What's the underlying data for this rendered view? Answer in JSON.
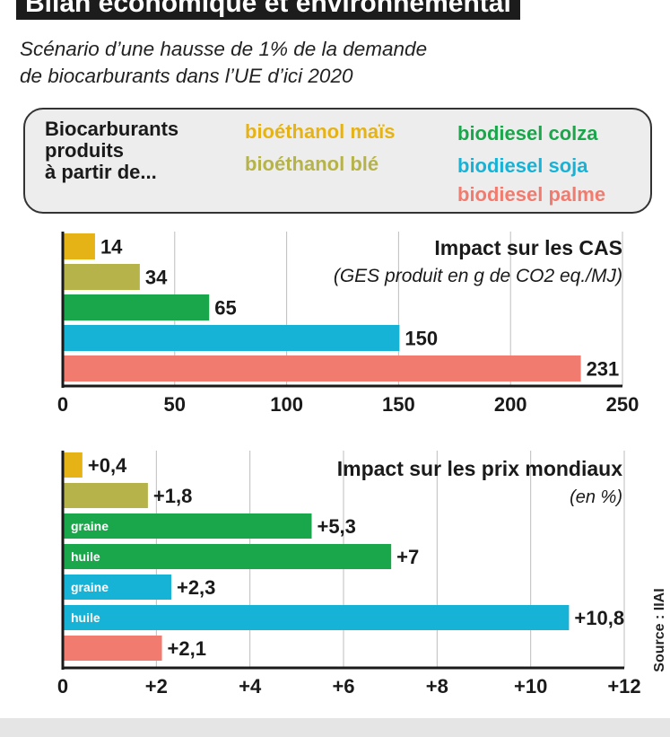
{
  "header": {
    "title": "Bilan économique et environnemental",
    "subtitle_line1": "Scénario d’une hausse de 1% de la demande",
    "subtitle_line2": "de biocarburants dans l’UE d’ici 2020"
  },
  "legend": {
    "lead_line1": "Biocarburants",
    "lead_line2": "produits",
    "lead_line3": "à partir de...",
    "items": [
      {
        "label": "bioéthanol maïs",
        "color": "#e6b317"
      },
      {
        "label": "bioéthanol blé",
        "color": "#b5b34a"
      },
      {
        "label": "biodiesel colza",
        "color": "#1aa64a"
      },
      {
        "label": "biodiesel soja",
        "color": "#17b3d6"
      },
      {
        "label": "biodiesel palme",
        "color": "#f07b6e"
      }
    ]
  },
  "source": "Source : IIAI",
  "chart_data": [
    {
      "type": "bar",
      "orientation": "horizontal",
      "title": "Impact sur les CAS",
      "subtitle": "(GES produit en g de CO2 eq./MJ)",
      "categories": [
        "bioéthanol maïs",
        "bioéthanol blé",
        "biodiesel colza",
        "biodiesel soja",
        "biodiesel palme"
      ],
      "values": [
        14,
        34,
        65,
        150,
        231
      ],
      "value_labels": [
        "14",
        "34",
        "65",
        "150",
        "231"
      ],
      "bar_labels": [
        "",
        "",
        "",
        "",
        ""
      ],
      "colors": [
        "#e6b317",
        "#b5b34a",
        "#1aa64a",
        "#17b3d6",
        "#f07b6e"
      ],
      "xlim": [
        0,
        250
      ],
      "ticks": [
        0,
        50,
        100,
        150,
        200,
        250
      ],
      "tick_labels": [
        "0",
        "50",
        "100",
        "150",
        "200",
        "250"
      ],
      "grid": true
    },
    {
      "type": "bar",
      "orientation": "horizontal",
      "title": "Impact sur les prix mondiaux",
      "subtitle": "(en %)",
      "categories": [
        "bioéthanol maïs",
        "bioéthanol blé",
        "biodiesel colza graine",
        "biodiesel colza huile",
        "biodiesel soja graine",
        "biodiesel soja huile",
        "biodiesel palme"
      ],
      "values": [
        0.4,
        1.8,
        5.3,
        7,
        2.3,
        10.8,
        2.1
      ],
      "value_labels": [
        "+0,4",
        "+1,8",
        "+5,3",
        "+7",
        "+2,3",
        "+10,8",
        "+2,1"
      ],
      "bar_labels": [
        "",
        "",
        "graine",
        "huile",
        "graine",
        "huile",
        ""
      ],
      "colors": [
        "#e6b317",
        "#b5b34a",
        "#1aa64a",
        "#1aa64a",
        "#17b3d6",
        "#17b3d6",
        "#f07b6e"
      ],
      "xlim": [
        0,
        12
      ],
      "ticks": [
        0,
        2,
        4,
        6,
        8,
        10,
        12
      ],
      "tick_labels": [
        "0",
        "+2",
        "+4",
        "+6",
        "+8",
        "+10",
        "+12"
      ],
      "grid": true
    }
  ]
}
